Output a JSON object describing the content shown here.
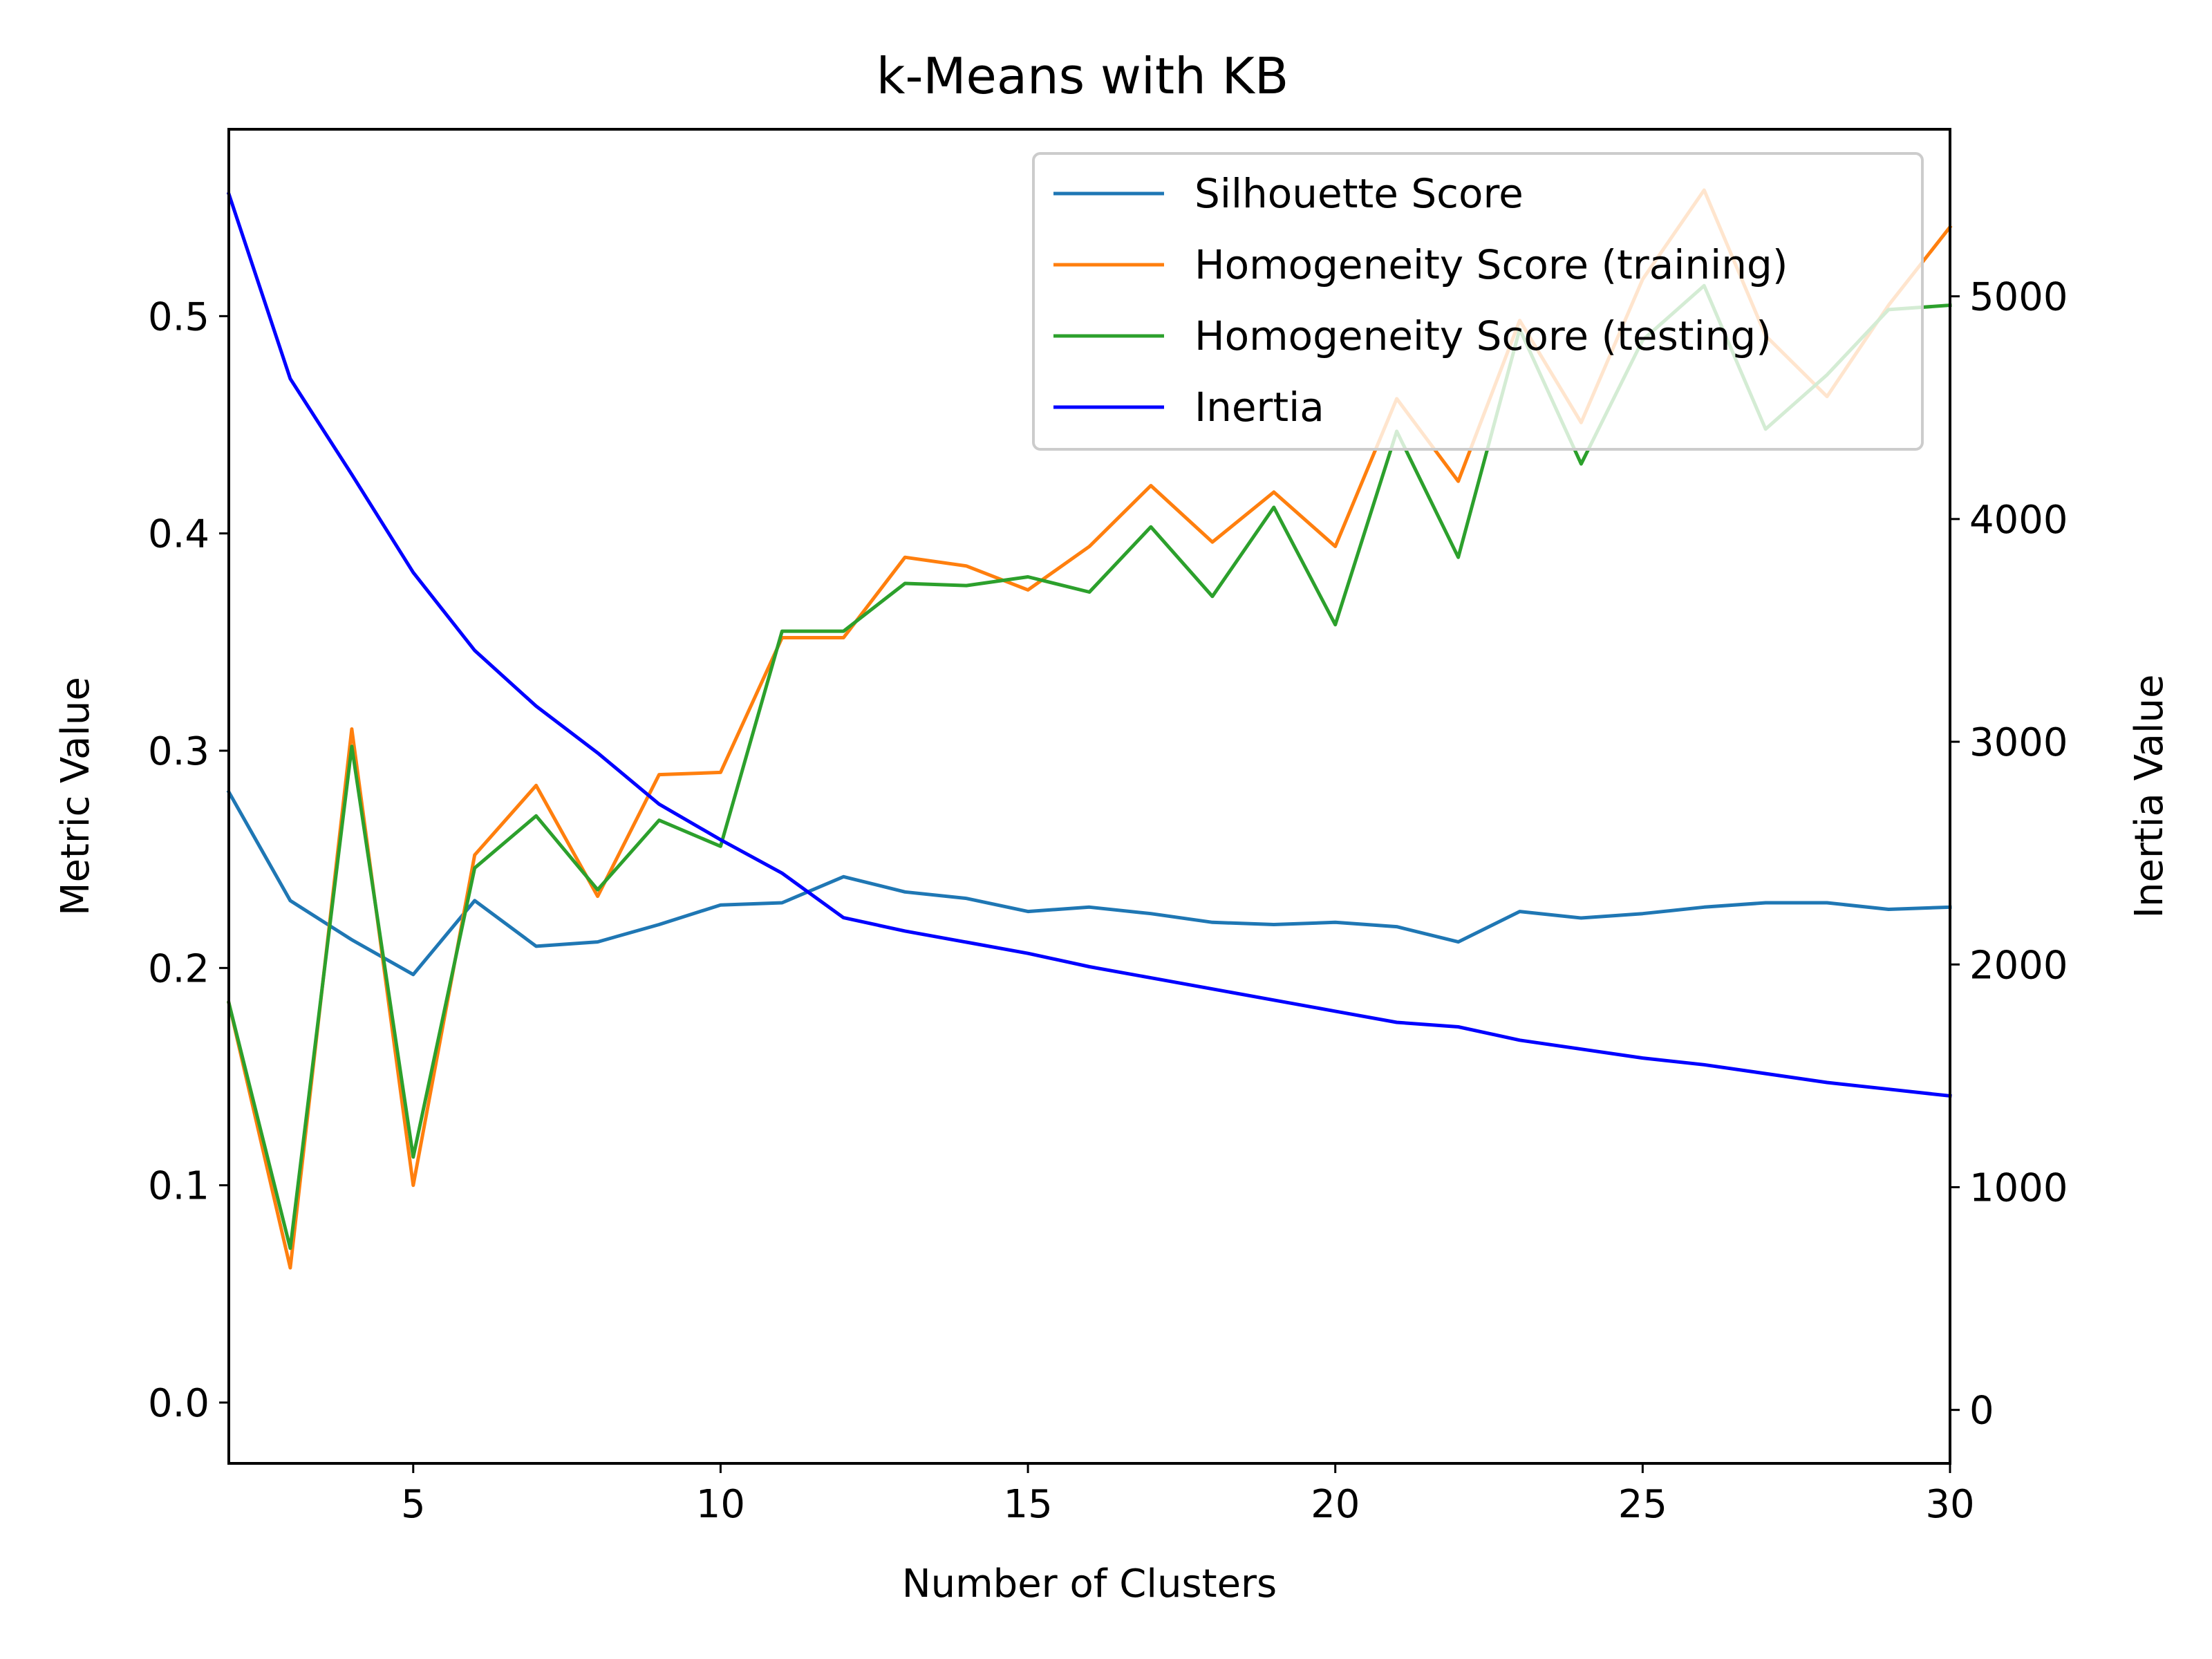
{
  "chart_data": {
    "type": "line",
    "title": "k-Means with KB",
    "xlabel": "Number of Clusters",
    "ylabel": "Metric Value",
    "y2label": "Inertia Value",
    "xlim": [
      2,
      30
    ],
    "ylim": [
      -0.028,
      0.586
    ],
    "y2lim": [
      -240,
      5750
    ],
    "xticks": [
      5,
      10,
      15,
      20,
      25,
      30
    ],
    "yticks": [
      0.0,
      0.1,
      0.2,
      0.3,
      0.4,
      0.5
    ],
    "y2ticks": [
      0,
      1000,
      2000,
      3000,
      4000,
      5000
    ],
    "grid": false,
    "legend_position": "upper right",
    "x": [
      2,
      3,
      4,
      5,
      6,
      7,
      8,
      9,
      10,
      11,
      12,
      13,
      14,
      15,
      16,
      17,
      18,
      19,
      20,
      21,
      22,
      23,
      24,
      25,
      26,
      27,
      28,
      29,
      30
    ],
    "series": [
      {
        "name": "Silhouette Score",
        "axis": "left",
        "color": "#1f77b4",
        "values": [
          0.281,
          0.231,
          0.213,
          0.197,
          0.231,
          0.21,
          0.212,
          0.22,
          0.229,
          0.23,
          0.242,
          0.235,
          0.232,
          0.226,
          0.228,
          0.225,
          0.221,
          0.22,
          0.221,
          0.219,
          0.212,
          0.226,
          0.223,
          0.225,
          0.228,
          0.23,
          0.23,
          0.227,
          0.228
        ]
      },
      {
        "name": "Homogeneity Score (training)",
        "axis": "left",
        "color": "#ff7f0e",
        "values": [
          0.184,
          0.062,
          0.31,
          0.1,
          0.252,
          0.284,
          0.233,
          0.289,
          0.29,
          0.352,
          0.352,
          0.389,
          0.385,
          0.374,
          0.394,
          0.422,
          0.396,
          0.419,
          0.394,
          0.462,
          0.424,
          0.498,
          0.451,
          0.517,
          0.558,
          0.491,
          0.463,
          0.505,
          0.541
        ]
      },
      {
        "name": "Homogeneity Score (testing)",
        "axis": "left",
        "color": "#2ca02c",
        "values": [
          0.184,
          0.071,
          0.302,
          0.113,
          0.246,
          0.27,
          0.236,
          0.268,
          0.256,
          0.355,
          0.355,
          0.377,
          0.376,
          0.38,
          0.373,
          0.403,
          0.371,
          0.412,
          0.358,
          0.447,
          0.389,
          0.494,
          0.432,
          0.489,
          0.514,
          0.448,
          0.473,
          0.503,
          0.505
        ]
      },
      {
        "name": "Inertia",
        "axis": "right",
        "color": "#0000ff",
        "values": [
          5460,
          4630,
          4200,
          3760,
          3410,
          3160,
          2950,
          2720,
          2560,
          2410,
          2210,
          2150,
          2100,
          2050,
          1990,
          1940,
          1890,
          1840,
          1790,
          1740,
          1720,
          1660,
          1620,
          1580,
          1550,
          1510,
          1470,
          1440,
          1410
        ]
      }
    ]
  }
}
